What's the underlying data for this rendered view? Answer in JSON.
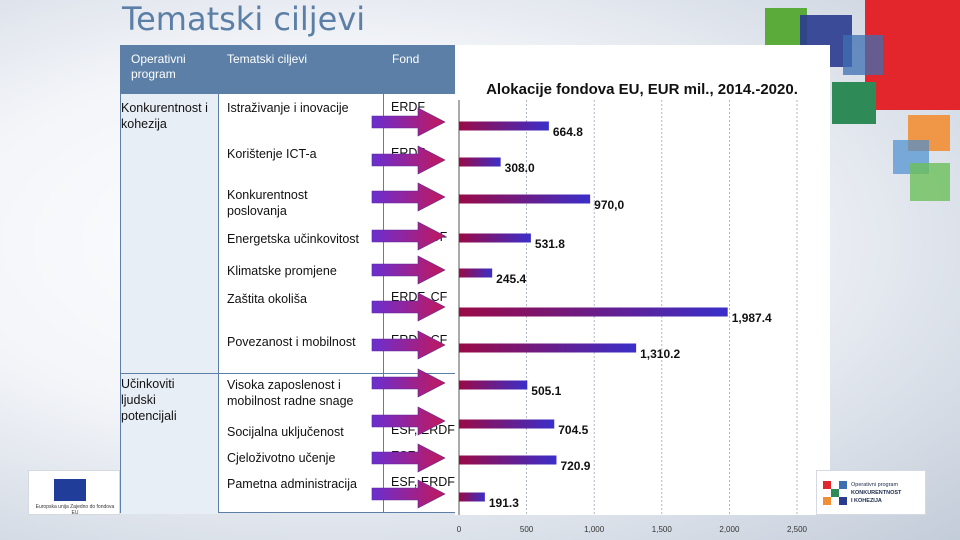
{
  "slide": {
    "title": "Tematski ciljevi"
  },
  "table": {
    "headers": {
      "program": "Operativni program",
      "goals": "Tematski ciljevi",
      "fund": "Fond"
    },
    "programs": [
      "Konkurentnost i kohezija",
      "Učinkoviti ljudski potencijali"
    ],
    "rows": [
      {
        "goal": "Istraživanje i inovacije",
        "fund": "ERDF"
      },
      {
        "goal": "Korištenje ICT-a",
        "fund": "ERDF"
      },
      {
        "goal": "Konkurentnost poslovanja",
        "fund": ""
      },
      {
        "goal": "Energetska učinkovitost",
        "fund": "ERDF, CF"
      },
      {
        "goal": "Klimatske promjene",
        "fund": ""
      },
      {
        "goal": "Zaštita okoliša",
        "fund": "ERDF, CF"
      },
      {
        "goal": "Povezanost i mobilnost",
        "fund": "ERDF, CF"
      },
      {
        "goal": "Visoka zaposlenost i mobilnost radne snage",
        "fund": ""
      },
      {
        "goal": "Socijalna uključenost",
        "fund": "ESF, ERDF"
      },
      {
        "goal": "Cjeloživotno učenje",
        "fund": "ESF"
      },
      {
        "goal": "Pametna administracija",
        "fund": "ESF, ERDF"
      }
    ]
  },
  "chart_data": {
    "type": "bar",
    "orientation": "horizontal",
    "title": "Alokacije fondova EU, EUR mil., 2014.-2020.",
    "values": [
      664.8,
      308.0,
      970.0,
      531.8,
      245.4,
      1987.4,
      1310.2,
      505.1,
      704.5,
      720.9,
      191.3
    ],
    "value_labels": [
      "664.8",
      "308.0",
      "970,0",
      "531.8",
      "245.4",
      "1,987.4",
      "1,310.2",
      "505.1",
      "704.5",
      "720.9",
      "191.3"
    ],
    "xlim": [
      0,
      2500
    ],
    "xticks": [
      "0",
      "500",
      "1,000",
      "1,500",
      "2,000",
      "2,500"
    ],
    "xtick_values": [
      0,
      500,
      1000,
      1500,
      2000,
      2500
    ],
    "grid": true,
    "colors": {
      "bar_start": "#9a0a46",
      "bar_end": "#3a2fc9",
      "arrow_start": "#6a2fd0",
      "arrow_end": "#c2185b"
    }
  },
  "logos": {
    "left_text": "Europska unija Zajedno do fondova EU",
    "right_lines": [
      "Operativni program",
      "KONKURENTNOST",
      "I KOHEZIJA"
    ]
  }
}
